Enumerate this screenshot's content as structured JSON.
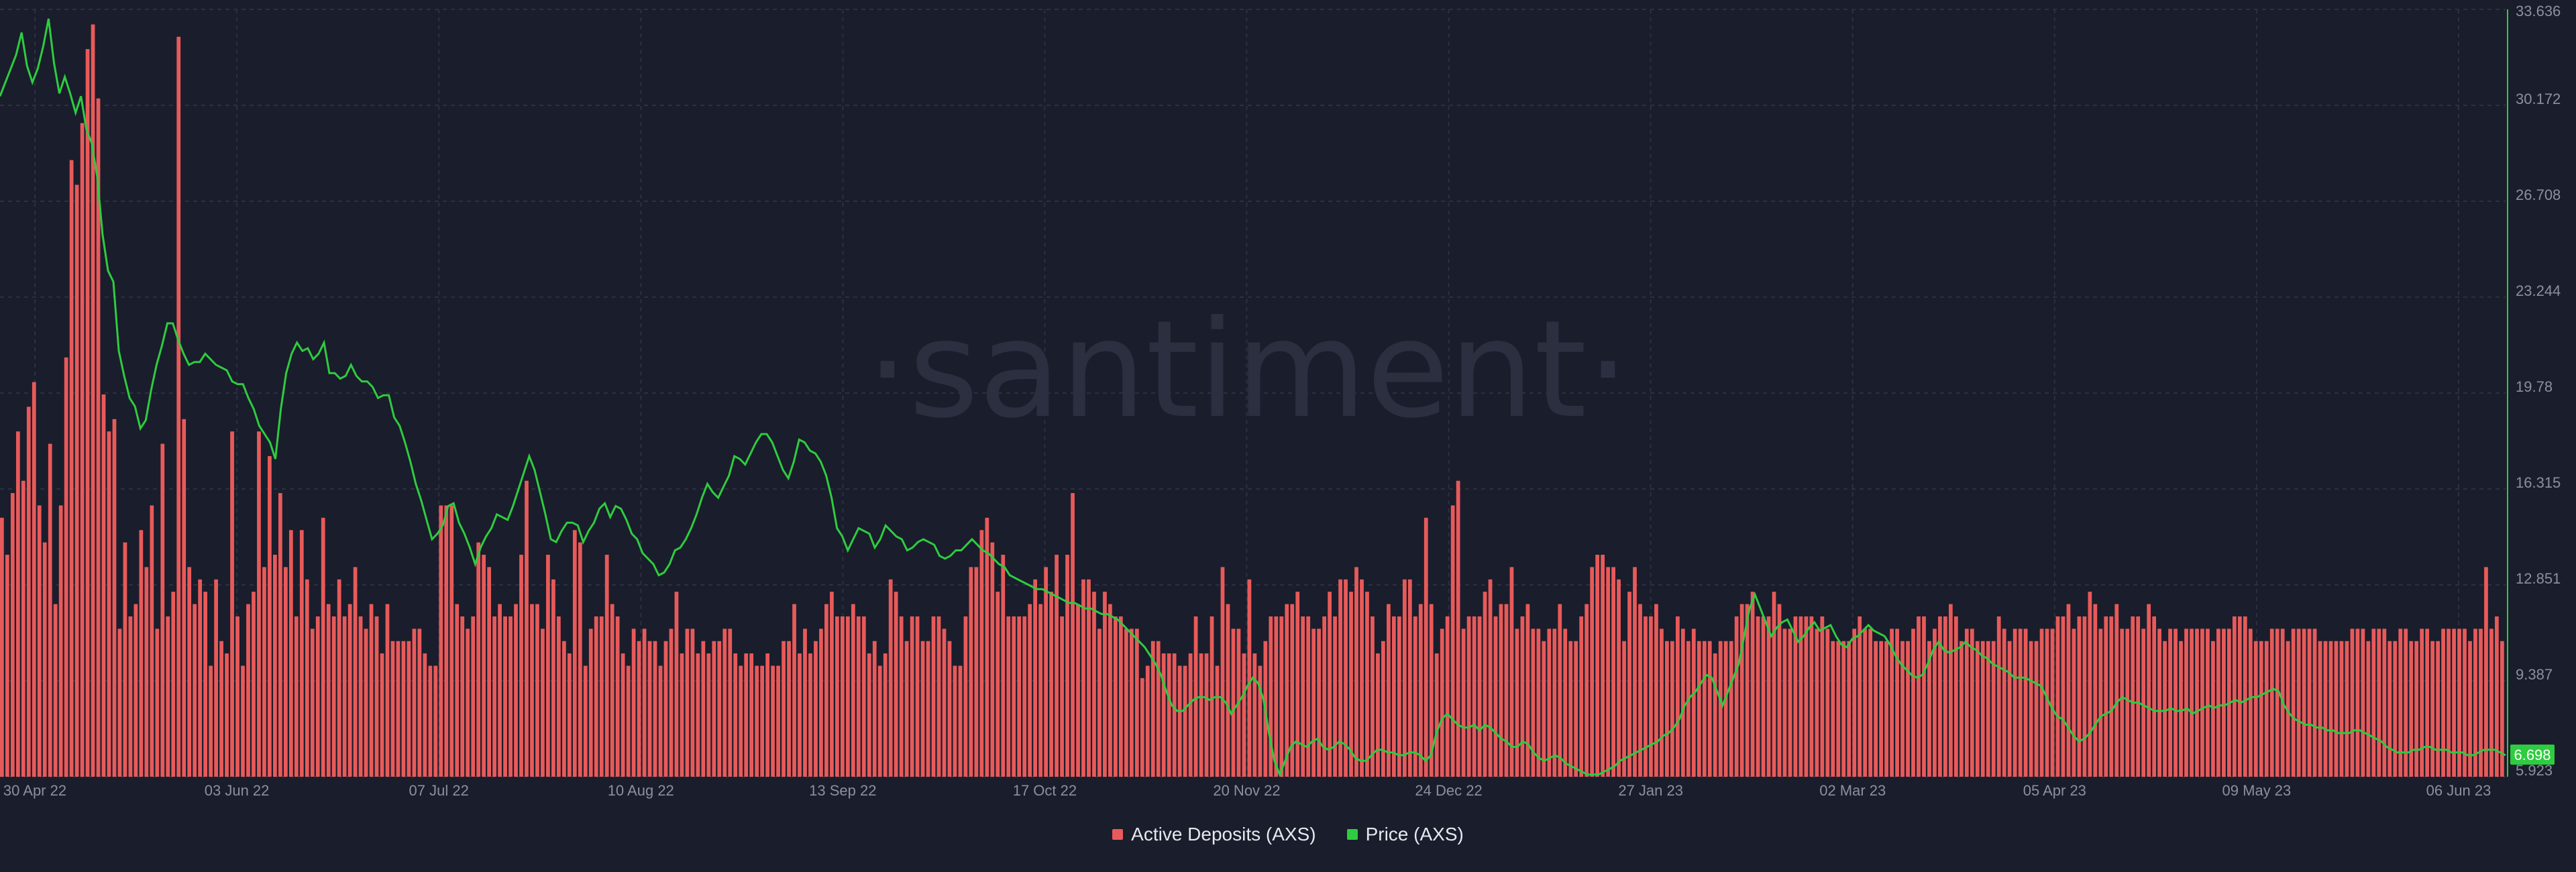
{
  "watermark": "·santiment·",
  "colors": {
    "background": "#1a1d2b",
    "grid": "#2c3040",
    "deposits": "#e85a5a",
    "price": "#2ecc40",
    "axis_text": "#8b90a0"
  },
  "chart_data": {
    "type": "bar+line",
    "x_ticks": [
      "30 Apr 22",
      "03 Jun 22",
      "07 Jul 22",
      "10 Aug 22",
      "13 Sep 22",
      "17 Oct 22",
      "20 Nov 22",
      "24 Dec 22",
      "27 Jan 23",
      "02 Mar 23",
      "05 Apr 23",
      "09 May 23",
      "06 Jun 23"
    ],
    "x_range": [
      "2022-04-29",
      "2023-06-06"
    ],
    "price_axis": {
      "side": "right",
      "ticks": [
        "33.636",
        "30.172",
        "26.708",
        "23.244",
        "19.78",
        "16.315",
        "12.851",
        "9.387",
        "5.923"
      ],
      "ylim": [
        5.923,
        33.636
      ],
      "current_value": "6.698"
    },
    "series": [
      {
        "name": "Active Deposits (AXS)",
        "kind": "bar",
        "axis": "hidden",
        "values": [
          21,
          18,
          23,
          28,
          24,
          30,
          32,
          22,
          19,
          27,
          14,
          22,
          34,
          50,
          48,
          53,
          59,
          61,
          55,
          31,
          28,
          29,
          12,
          19,
          13,
          14,
          20,
          17,
          22,
          12,
          27,
          13,
          15,
          60,
          29,
          17,
          14,
          16,
          15,
          9,
          16,
          11,
          10,
          28,
          13,
          9,
          14,
          15,
          28,
          17,
          26,
          18,
          23,
          17,
          20,
          13,
          20,
          16,
          12,
          13,
          21,
          14,
          13,
          16,
          13,
          14,
          17,
          13,
          12,
          14,
          13,
          10,
          14,
          11,
          11,
          11,
          11,
          12,
          12,
          10,
          9,
          9,
          22,
          22,
          22,
          14,
          13,
          12,
          13,
          19,
          18,
          17,
          13,
          14,
          13,
          13,
          14,
          18,
          24,
          14,
          14,
          12,
          18,
          16,
          13,
          11,
          10,
          20,
          19,
          9,
          12,
          13,
          13,
          18,
          14,
          13,
          10,
          9,
          12,
          11,
          12,
          11,
          11,
          9,
          11,
          12,
          15,
          10,
          12,
          12,
          10,
          11,
          10,
          11,
          11,
          12,
          12,
          10,
          9,
          10,
          10,
          9,
          9,
          10,
          9,
          9,
          11,
          11,
          14,
          10,
          12,
          10,
          11,
          12,
          14,
          15,
          13,
          13,
          13,
          14,
          13,
          13,
          10,
          11,
          9,
          10,
          16,
          15,
          13,
          11,
          13,
          13,
          11,
          11,
          13,
          13,
          12,
          11,
          9,
          9,
          13,
          17,
          17,
          20,
          21,
          19,
          15,
          18,
          13,
          13,
          13,
          13,
          14,
          16,
          14,
          17,
          15,
          18,
          13,
          18,
          23,
          14,
          16,
          16,
          15,
          12,
          15,
          14,
          13,
          13,
          12,
          12,
          12,
          8,
          9,
          11,
          11,
          10,
          10,
          10,
          9,
          9,
          10,
          13,
          10,
          10,
          13,
          9,
          17,
          14,
          12,
          12,
          10,
          16,
          10,
          9,
          11,
          13,
          13,
          13,
          14,
          14,
          15,
          13,
          13,
          12,
          12,
          13,
          15,
          13,
          16,
          16,
          15,
          17,
          16,
          15,
          13,
          10,
          11,
          14,
          13,
          13,
          16,
          16,
          13,
          14,
          21,
          14,
          10,
          12,
          13,
          22,
          24,
          12,
          13,
          13,
          13,
          15,
          16,
          13,
          14,
          14,
          17,
          12,
          13,
          14,
          12,
          12,
          11,
          12,
          12,
          14,
          12,
          11,
          11,
          13,
          14,
          17,
          18,
          18,
          17,
          17,
          16,
          11,
          15,
          17,
          14,
          13,
          13,
          14,
          12,
          11,
          11,
          13,
          12,
          11,
          12,
          11,
          11,
          11,
          10,
          11,
          11,
          11,
          13,
          14,
          14,
          15,
          13,
          13,
          13,
          15,
          14,
          12,
          12,
          13,
          13,
          13,
          13,
          12,
          13,
          12,
          11,
          11,
          11,
          11,
          12,
          13,
          12,
          12,
          11,
          11,
          11,
          12,
          12,
          11,
          11,
          12,
          13,
          13,
          11,
          12,
          13,
          13,
          14,
          13,
          11,
          12,
          12,
          11,
          11,
          11,
          11,
          13,
          12,
          11,
          12,
          12,
          12,
          11,
          11,
          12,
          12,
          12,
          13,
          13,
          14,
          12,
          13,
          13,
          15,
          14,
          12,
          13,
          13,
          14,
          12,
          12,
          13,
          13,
          12,
          14,
          13,
          12,
          11,
          12,
          12,
          11,
          12,
          12,
          12,
          12,
          12,
          11,
          12,
          12,
          12,
          13,
          13,
          13,
          12,
          11,
          11,
          11,
          12,
          12,
          12,
          11,
          12,
          12,
          12,
          12,
          12,
          11,
          11,
          11,
          11,
          11,
          11,
          12,
          12,
          12,
          11,
          12,
          12,
          12,
          11,
          11,
          12,
          12,
          11,
          11,
          12,
          12,
          11,
          11,
          12,
          12,
          12,
          12,
          12,
          11,
          12,
          12,
          17,
          12,
          13,
          11
        ]
      },
      {
        "name": "Price (AXS)",
        "kind": "line",
        "axis": "right",
        "values": [
          30.5,
          31.0,
          31.5,
          32.0,
          32.8,
          31.6,
          31.0,
          31.5,
          32.3,
          33.3,
          31.7,
          30.6,
          31.2,
          30.6,
          29.9,
          30.5,
          29.3,
          28.8,
          27.6,
          25.5,
          24.2,
          23.8,
          21.3,
          20.4,
          19.6,
          19.3,
          18.5,
          18.8,
          19.9,
          20.8,
          21.5,
          22.3,
          22.3,
          21.7,
          21.2,
          20.8,
          20.9,
          20.9,
          21.2,
          21.0,
          20.8,
          20.7,
          20.6,
          20.2,
          20.1,
          20.1,
          19.6,
          19.2,
          18.6,
          18.3,
          18.0,
          17.4,
          19.2,
          20.5,
          21.2,
          21.6,
          21.3,
          21.4,
          21.0,
          21.2,
          21.6,
          20.5,
          20.5,
          20.3,
          20.4,
          20.8,
          20.4,
          20.2,
          20.2,
          20.0,
          19.6,
          19.7,
          19.7,
          18.9,
          18.6,
          18.0,
          17.3,
          16.5,
          15.9,
          15.2,
          14.5,
          14.7,
          15.0,
          15.7,
          15.8,
          15.1,
          14.7,
          14.2,
          13.6,
          14.2,
          14.6,
          14.9,
          15.4,
          15.3,
          15.2,
          15.7,
          16.3,
          16.9,
          17.5,
          17.0,
          16.2,
          15.4,
          14.5,
          14.4,
          14.8,
          15.1,
          15.1,
          15.0,
          14.4,
          14.8,
          15.1,
          15.6,
          15.8,
          15.3,
          15.7,
          15.6,
          15.2,
          14.7,
          14.5,
          14.0,
          13.8,
          13.6,
          13.2,
          13.3,
          13.6,
          14.1,
          14.2,
          14.5,
          14.9,
          15.4,
          16.0,
          16.5,
          16.2,
          16.0,
          16.4,
          16.8,
          17.5,
          17.4,
          17.2,
          17.6,
          18.0,
          18.3,
          18.3,
          18.0,
          17.5,
          17.0,
          16.7,
          17.3,
          18.1,
          18.0,
          17.7,
          17.6,
          17.3,
          16.8,
          16.0,
          14.9,
          14.6,
          14.1,
          14.5,
          14.9,
          14.8,
          14.7,
          14.2,
          14.5,
          15.0,
          14.8,
          14.6,
          14.5,
          14.1,
          14.2,
          14.4,
          14.5,
          14.4,
          14.3,
          13.9,
          13.8,
          13.9,
          14.1,
          14.1,
          14.3,
          14.5,
          14.3,
          14.1,
          14.0,
          13.8,
          13.6,
          13.5,
          13.2,
          13.1,
          13.0,
          12.9,
          12.8,
          12.7,
          12.7,
          12.6,
          12.5,
          12.4,
          12.3,
          12.2,
          12.2,
          12.1,
          12.0,
          12.0,
          11.9,
          11.8,
          11.8,
          11.7,
          11.6,
          11.4,
          11.2,
          11.0,
          10.8,
          10.6,
          10.3,
          10.0,
          9.6,
          9.0,
          8.5,
          8.3,
          8.3,
          8.5,
          8.7,
          8.8,
          8.8,
          8.7,
          8.8,
          8.8,
          8.6,
          8.2,
          8.5,
          8.8,
          9.2,
          9.5,
          9.3,
          8.7,
          7.5,
          6.5,
          6.0,
          6.5,
          7.0,
          7.2,
          7.1,
          7.0,
          7.2,
          7.3,
          7.0,
          6.9,
          7.0,
          7.2,
          7.1,
          6.9,
          6.6,
          6.5,
          6.5,
          6.7,
          6.9,
          6.9,
          6.8,
          6.8,
          6.7,
          6.7,
          6.8,
          6.8,
          6.7,
          6.5,
          6.7,
          7.5,
          8.0,
          8.2,
          8.0,
          7.8,
          7.7,
          7.7,
          7.8,
          7.6,
          7.8,
          7.7,
          7.5,
          7.3,
          7.2,
          7.0,
          7.0,
          7.2,
          7.1,
          6.8,
          6.6,
          6.5,
          6.6,
          6.7,
          6.6,
          6.4,
          6.3,
          6.2,
          6.1,
          6.0,
          6.0,
          6.0,
          6.1,
          6.2,
          6.3,
          6.5,
          6.6,
          6.7,
          6.8,
          6.9,
          7.0,
          7.1,
          7.2,
          7.4,
          7.5,
          7.7,
          8.0,
          8.5,
          8.8,
          9.0,
          9.3,
          9.6,
          9.5,
          9.0,
          8.5,
          9.0,
          9.5,
          10.0,
          11.0,
          12.0,
          12.5,
          12.0,
          11.5,
          11.0,
          11.3,
          11.5,
          11.6,
          11.2,
          10.8,
          11.0,
          11.3,
          11.5,
          11.2,
          11.3,
          11.4,
          11.0,
          10.7,
          10.6,
          10.9,
          11.0,
          11.2,
          11.4,
          11.2,
          11.1,
          11.0,
          10.7,
          10.3,
          10.0,
          9.8,
          9.6,
          9.5,
          9.6,
          10.0,
          10.5,
          10.8,
          10.5,
          10.4,
          10.5,
          10.6,
          10.8,
          10.6,
          10.5,
          10.3,
          10.2,
          10.0,
          9.9,
          9.8,
          9.7,
          9.5,
          9.5,
          9.5,
          9.4,
          9.3,
          9.2,
          8.8,
          8.4,
          8.1,
          8.0,
          7.7,
          7.4,
          7.2,
          7.3,
          7.5,
          7.8,
          8.1,
          8.2,
          8.3,
          8.6,
          8.8,
          8.7,
          8.6,
          8.6,
          8.5,
          8.4,
          8.3,
          8.3,
          8.3,
          8.4,
          8.3,
          8.3,
          8.4,
          8.2,
          8.3,
          8.4,
          8.5,
          8.4,
          8.5,
          8.5,
          8.6,
          8.7,
          8.6,
          8.7,
          8.8,
          8.8,
          8.9,
          9.0,
          9.1,
          9.0,
          8.5,
          8.2,
          8.0,
          7.9,
          7.8,
          7.8,
          7.7,
          7.7,
          7.6,
          7.6,
          7.5,
          7.5,
          7.5,
          7.6,
          7.6,
          7.5,
          7.4,
          7.3,
          7.2,
          7.0,
          6.9,
          6.8,
          6.8,
          6.8,
          6.9,
          6.9,
          7.0,
          7.0,
          6.9,
          6.9,
          6.9,
          6.8,
          6.8,
          6.8,
          6.7,
          6.7,
          6.8,
          6.9,
          6.9,
          6.9,
          6.8,
          6.7
        ]
      }
    ],
    "legend_position": "bottom-center",
    "grid": true
  }
}
